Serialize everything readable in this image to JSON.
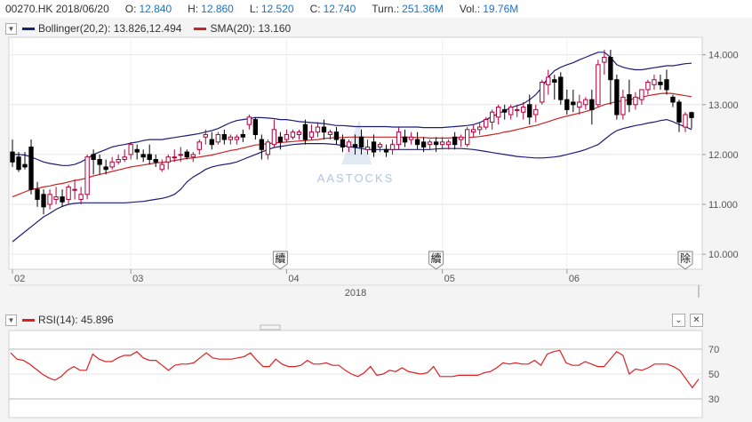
{
  "quote": {
    "symbol": "00270.HK 2018/06/20",
    "open_label": "O:",
    "open": "12.840",
    "high_label": "H:",
    "high": "12.860",
    "low_label": "L:",
    "low": "12.520",
    "close_label": "C:",
    "close": "12.740",
    "turnover_label": "Turn.:",
    "turnover": "251.36M",
    "volume_label": "Vol.:",
    "volume": "19.76M"
  },
  "main_panel": {
    "bollinger_label": "Bollinger(20,2): 13.826,12.494",
    "sma_label": "SMA(20): 13.160",
    "watermark": "AASTOCKS",
    "markers": [
      "續",
      "續",
      "除"
    ]
  },
  "rsi_panel": {
    "label": "RSI(14): 45.896"
  },
  "colors": {
    "up_candle": "#b0003a",
    "down_candle": "#000000",
    "bollinger": "#1c1c7a",
    "sma": "#cc2222",
    "rsi": "#e02020"
  },
  "chart_data": [
    {
      "type": "candlestick",
      "y_ticks": [
        "14.000",
        "13.000",
        "12.000",
        "11.000",
        "10.000"
      ],
      "ylim": [
        9.7,
        14.35
      ],
      "x_tick_labels": [
        "02",
        "03",
        "04",
        "05",
        "06"
      ],
      "x_year_label": "2018",
      "candles": [
        [
          12.05,
          12.3,
          11.85,
          11.75
        ],
        [
          11.95,
          12.05,
          11.7,
          11.65
        ],
        [
          11.8,
          12.05,
          11.75,
          11.7
        ],
        [
          12.15,
          12.3,
          11.3,
          11.2
        ],
        [
          11.3,
          11.45,
          11.1,
          10.95
        ],
        [
          11.2,
          11.3,
          10.95,
          10.8
        ],
        [
          11.0,
          11.3,
          11.2,
          10.9
        ],
        [
          11.1,
          11.35,
          11.15,
          11.0
        ],
        [
          11.15,
          11.3,
          11.05,
          10.95
        ],
        [
          11.1,
          11.4,
          11.35,
          11.0
        ],
        [
          11.3,
          11.5,
          11.3,
          11.1
        ],
        [
          11.1,
          11.35,
          11.2,
          11.0
        ],
        [
          11.2,
          12.0,
          11.95,
          11.1
        ],
        [
          12.0,
          12.1,
          11.9,
          11.6
        ],
        [
          11.9,
          12.0,
          11.8,
          11.6
        ],
        [
          11.75,
          11.9,
          11.7,
          11.6
        ],
        [
          11.75,
          11.95,
          11.85,
          11.7
        ],
        [
          11.85,
          12.0,
          11.9,
          11.8
        ],
        [
          11.9,
          12.1,
          11.95,
          11.85
        ],
        [
          12.0,
          12.25,
          12.2,
          11.9
        ],
        [
          12.1,
          12.2,
          12.05,
          11.9
        ],
        [
          12.0,
          12.1,
          11.95,
          11.85
        ],
        [
          12.0,
          12.2,
          11.9,
          11.8
        ],
        [
          11.9,
          12.0,
          11.85,
          11.75
        ],
        [
          11.7,
          11.9,
          11.8,
          11.65
        ],
        [
          11.85,
          12.0,
          11.95,
          11.7
        ],
        [
          11.95,
          12.1,
          11.95,
          11.85
        ],
        [
          12.0,
          12.15,
          12.0,
          11.85
        ],
        [
          12.05,
          12.1,
          11.95,
          11.9
        ],
        [
          11.95,
          12.05,
          12.0,
          11.85
        ],
        [
          12.1,
          12.3,
          12.25,
          12.0
        ],
        [
          12.35,
          12.5,
          12.4,
          12.2
        ],
        [
          12.3,
          12.45,
          12.2,
          12.1
        ],
        [
          12.25,
          12.45,
          12.4,
          12.2
        ],
        [
          12.4,
          12.5,
          12.3,
          12.2
        ],
        [
          12.3,
          12.4,
          12.35,
          12.2
        ],
        [
          12.3,
          12.4,
          12.35,
          12.2
        ],
        [
          12.4,
          12.5,
          12.35,
          12.25
        ],
        [
          12.6,
          12.8,
          12.75,
          12.5
        ],
        [
          12.7,
          12.75,
          12.4,
          12.3
        ],
        [
          12.3,
          12.4,
          12.1,
          11.9
        ],
        [
          12.0,
          12.3,
          12.25,
          11.9
        ],
        [
          12.2,
          12.7,
          12.5,
          12.15
        ],
        [
          12.35,
          12.45,
          12.25,
          12.1
        ],
        [
          12.3,
          12.5,
          12.4,
          12.25
        ],
        [
          12.35,
          12.5,
          12.45,
          12.3
        ],
        [
          12.4,
          12.5,
          12.45,
          12.3
        ],
        [
          12.6,
          12.7,
          12.3,
          12.2
        ],
        [
          12.35,
          12.6,
          12.45,
          12.3
        ],
        [
          12.45,
          12.65,
          12.55,
          12.35
        ],
        [
          12.55,
          12.7,
          12.45,
          12.3
        ],
        [
          12.4,
          12.5,
          12.45,
          12.3
        ],
        [
          12.45,
          12.55,
          12.3,
          12.2
        ],
        [
          12.3,
          12.4,
          12.15,
          12.05
        ],
        [
          12.15,
          12.3,
          12.25,
          12.05
        ],
        [
          12.2,
          12.4,
          12.15,
          12.0
        ],
        [
          12.35,
          12.5,
          12.15,
          12.0
        ],
        [
          12.1,
          12.3,
          12.15,
          12.0
        ],
        [
          12.25,
          12.4,
          12.05,
          11.95
        ],
        [
          12.15,
          12.25,
          12.2,
          12.05
        ],
        [
          12.1,
          12.2,
          12.05,
          11.95
        ],
        [
          12.1,
          12.3,
          12.2,
          12.0
        ],
        [
          12.2,
          12.55,
          12.45,
          12.1
        ],
        [
          12.35,
          12.5,
          12.25,
          12.15
        ],
        [
          12.3,
          12.45,
          12.35,
          12.2
        ],
        [
          12.3,
          12.45,
          12.2,
          12.1
        ],
        [
          12.25,
          12.35,
          12.15,
          12.05
        ],
        [
          12.2,
          12.3,
          12.25,
          12.1
        ],
        [
          12.25,
          12.35,
          12.2,
          12.05
        ],
        [
          12.2,
          12.35,
          12.25,
          12.1
        ],
        [
          12.2,
          12.3,
          12.25,
          12.1
        ],
        [
          12.35,
          12.45,
          12.2,
          12.1
        ],
        [
          12.3,
          12.4,
          12.35,
          12.15
        ],
        [
          12.2,
          12.55,
          12.5,
          12.15
        ],
        [
          12.45,
          12.6,
          12.5,
          12.35
        ],
        [
          12.5,
          12.65,
          12.55,
          12.4
        ],
        [
          12.55,
          12.75,
          12.7,
          12.5
        ],
        [
          12.65,
          12.9,
          12.85,
          12.5
        ],
        [
          12.75,
          13.0,
          12.95,
          12.6
        ],
        [
          12.9,
          13.0,
          12.85,
          12.7
        ],
        [
          12.8,
          13.0,
          12.95,
          12.7
        ],
        [
          12.9,
          13.0,
          12.9,
          12.75
        ],
        [
          12.85,
          13.05,
          12.95,
          12.7
        ],
        [
          13.0,
          13.2,
          12.75,
          12.6
        ],
        [
          12.8,
          13.0,
          12.9,
          12.65
        ],
        [
          13.05,
          13.5,
          13.45,
          13.0
        ],
        [
          13.4,
          13.7,
          13.55,
          13.2
        ],
        [
          13.5,
          13.6,
          13.45,
          13.1
        ],
        [
          13.55,
          13.65,
          13.1,
          13.0
        ],
        [
          13.1,
          13.3,
          12.9,
          12.8
        ],
        [
          13.05,
          13.3,
          13.0,
          12.85
        ],
        [
          12.95,
          13.2,
          13.05,
          12.8
        ],
        [
          13.0,
          13.15,
          13.1,
          12.9
        ],
        [
          13.1,
          13.3,
          12.9,
          12.6
        ],
        [
          13.0,
          13.9,
          13.8,
          12.95
        ],
        [
          13.85,
          14.1,
          13.95,
          13.6
        ],
        [
          13.95,
          14.1,
          13.5,
          13.0
        ],
        [
          13.5,
          13.6,
          12.8,
          12.7
        ],
        [
          12.8,
          13.3,
          13.15,
          12.7
        ],
        [
          13.2,
          13.5,
          13.0,
          12.85
        ],
        [
          13.0,
          13.25,
          13.15,
          12.9
        ],
        [
          13.1,
          13.3,
          13.3,
          13.0
        ],
        [
          13.3,
          13.5,
          13.45,
          13.2
        ],
        [
          13.4,
          13.6,
          13.5,
          13.3
        ],
        [
          13.45,
          13.6,
          13.4,
          13.3
        ],
        [
          13.5,
          13.7,
          13.3,
          13.2
        ],
        [
          13.15,
          13.2,
          13.05,
          12.95
        ],
        [
          13.05,
          13.1,
          12.65,
          12.45
        ],
        [
          12.55,
          12.85,
          12.8,
          12.45
        ],
        [
          12.84,
          12.86,
          12.74,
          12.52
        ]
      ],
      "sma": [
        11.15,
        11.2,
        11.25,
        11.3,
        11.32,
        11.35,
        11.37,
        11.4,
        11.42,
        11.45,
        11.48,
        11.5,
        11.53,
        11.57,
        11.6,
        11.63,
        11.66,
        11.69,
        11.72,
        11.75,
        11.77,
        11.79,
        11.81,
        11.83,
        11.84,
        11.86,
        11.88,
        11.9,
        11.92,
        11.93,
        11.95,
        11.97,
        11.99,
        12.02,
        12.05,
        12.08,
        12.1,
        12.13,
        12.16,
        12.19,
        12.2,
        12.22,
        12.23,
        12.24,
        12.25,
        12.26,
        12.27,
        12.28,
        12.29,
        12.3,
        12.32,
        12.33,
        12.34,
        12.34,
        12.35,
        12.35,
        12.35,
        12.35,
        12.35,
        12.35,
        12.35,
        12.35,
        12.35,
        12.35,
        12.35,
        12.34,
        12.34,
        12.33,
        12.33,
        12.33,
        12.33,
        12.34,
        12.34,
        12.34,
        12.35,
        12.36,
        12.38,
        12.4,
        12.42,
        12.45,
        12.47,
        12.5,
        12.53,
        12.56,
        12.58,
        12.62,
        12.66,
        12.7,
        12.74,
        12.77,
        12.8,
        12.83,
        12.86,
        12.9,
        12.95,
        13.0,
        13.03,
        13.06,
        13.08,
        13.1,
        13.12,
        13.15,
        13.18,
        13.2,
        13.22,
        13.23,
        13.22,
        13.2,
        13.18,
        13.16
      ],
      "bollinger_upper": [
        12.0,
        12.0,
        11.99,
        11.95,
        11.9,
        11.85,
        11.82,
        11.8,
        11.78,
        11.78,
        11.8,
        11.85,
        11.92,
        12.0,
        12.05,
        12.1,
        12.15,
        12.18,
        12.2,
        12.23,
        12.25,
        12.28,
        12.3,
        12.3,
        12.3,
        12.32,
        12.34,
        12.36,
        12.38,
        12.4,
        12.42,
        12.45,
        12.48,
        12.52,
        12.58,
        12.64,
        12.68,
        12.7,
        12.72,
        12.74,
        12.74,
        12.73,
        12.72,
        12.7,
        12.7,
        12.68,
        12.66,
        12.65,
        12.64,
        12.63,
        12.62,
        12.6,
        12.58,
        12.58,
        12.57,
        12.56,
        12.56,
        12.56,
        12.56,
        12.56,
        12.56,
        12.55,
        12.55,
        12.55,
        12.55,
        12.55,
        12.54,
        12.54,
        12.54,
        12.54,
        12.55,
        12.56,
        12.57,
        12.58,
        12.6,
        12.64,
        12.7,
        12.76,
        12.82,
        12.88,
        12.94,
        12.98,
        13.02,
        13.1,
        13.2,
        13.35,
        13.55,
        13.68,
        13.75,
        13.8,
        13.84,
        13.9,
        13.95,
        14.0,
        14.05,
        14.05,
        13.95,
        13.8,
        13.75,
        13.72,
        13.7,
        13.7,
        13.72,
        13.74,
        13.76,
        13.78,
        13.78,
        13.8,
        13.82,
        13.83
      ],
      "bollinger_lower": [
        10.25,
        10.35,
        10.45,
        10.55,
        10.65,
        10.75,
        10.82,
        10.9,
        10.96,
        11.0,
        11.02,
        11.03,
        11.03,
        11.03,
        11.03,
        11.03,
        11.03,
        11.03,
        11.03,
        11.04,
        11.05,
        11.06,
        11.08,
        11.1,
        11.12,
        11.15,
        11.2,
        11.3,
        11.45,
        11.55,
        11.62,
        11.7,
        11.75,
        11.78,
        11.8,
        11.82,
        11.85,
        11.9,
        11.95,
        12.0,
        12.05,
        12.1,
        12.14,
        12.16,
        12.18,
        12.2,
        12.21,
        12.22,
        12.22,
        12.22,
        12.22,
        12.21,
        12.2,
        12.18,
        12.16,
        12.14,
        12.12,
        12.1,
        12.1,
        12.1,
        12.1,
        12.1,
        12.1,
        12.1,
        12.1,
        12.1,
        12.1,
        12.1,
        12.11,
        12.12,
        12.12,
        12.12,
        12.12,
        12.11,
        12.1,
        12.08,
        12.06,
        12.04,
        12.02,
        12.0,
        11.98,
        11.96,
        11.95,
        11.94,
        11.93,
        11.93,
        11.94,
        11.95,
        11.97,
        12.0,
        12.03,
        12.06,
        12.1,
        12.15,
        12.2,
        12.3,
        12.4,
        12.48,
        12.52,
        12.55,
        12.58,
        12.6,
        12.63,
        12.65,
        12.68,
        12.7,
        12.66,
        12.6,
        12.56,
        12.5
      ]
    },
    {
      "type": "line",
      "y_ticks": [
        "70",
        "50",
        "30"
      ],
      "ylim": [
        15,
        85
      ],
      "series": [
        {
          "name": "RSI(14)",
          "values": [
            67,
            62,
            61,
            58,
            54,
            50,
            47,
            45,
            48,
            53,
            56,
            53,
            53,
            66,
            62,
            60,
            60,
            63,
            65,
            65,
            68,
            63,
            61,
            61,
            57,
            53,
            57,
            58,
            58,
            59,
            63,
            67,
            63,
            62,
            62,
            62,
            63,
            64,
            67,
            61,
            56,
            56,
            62,
            58,
            56,
            56,
            57,
            61,
            58,
            58,
            59,
            57,
            57,
            53,
            50,
            48,
            51,
            56,
            49,
            50,
            53,
            52,
            55,
            52,
            51,
            50,
            51,
            56,
            48,
            48,
            48,
            49,
            49,
            49,
            49,
            51,
            52,
            55,
            59,
            58,
            59,
            58,
            58,
            61,
            57,
            66,
            68,
            69,
            59,
            57,
            57,
            60,
            58,
            56,
            56,
            62,
            68,
            65,
            50,
            54,
            53,
            55,
            58,
            58,
            58,
            56,
            53,
            46,
            39,
            45.896
          ]
        }
      ]
    }
  ]
}
